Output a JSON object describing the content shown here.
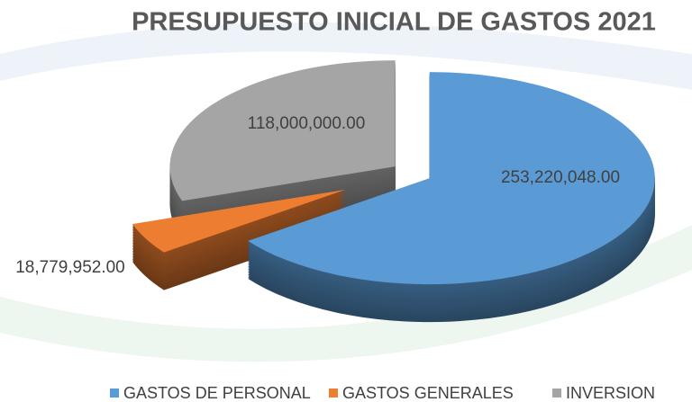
{
  "chart_data": {
    "type": "pie",
    "title": "PRESUPUESTO INICIAL DE GASTOS 2021",
    "categories": [
      "GASTOS DE PERSONAL",
      "GASTOS GENERALES",
      "INVERSION"
    ],
    "values": [
      253220048,
      18779952,
      118000000
    ],
    "value_labels": [
      "253,220,048.00",
      "18,779,952.00",
      "118,000,000.00"
    ],
    "colors": [
      "#5b9bd5",
      "#ed7d31",
      "#a5a5a5"
    ],
    "legend": "bottom"
  }
}
